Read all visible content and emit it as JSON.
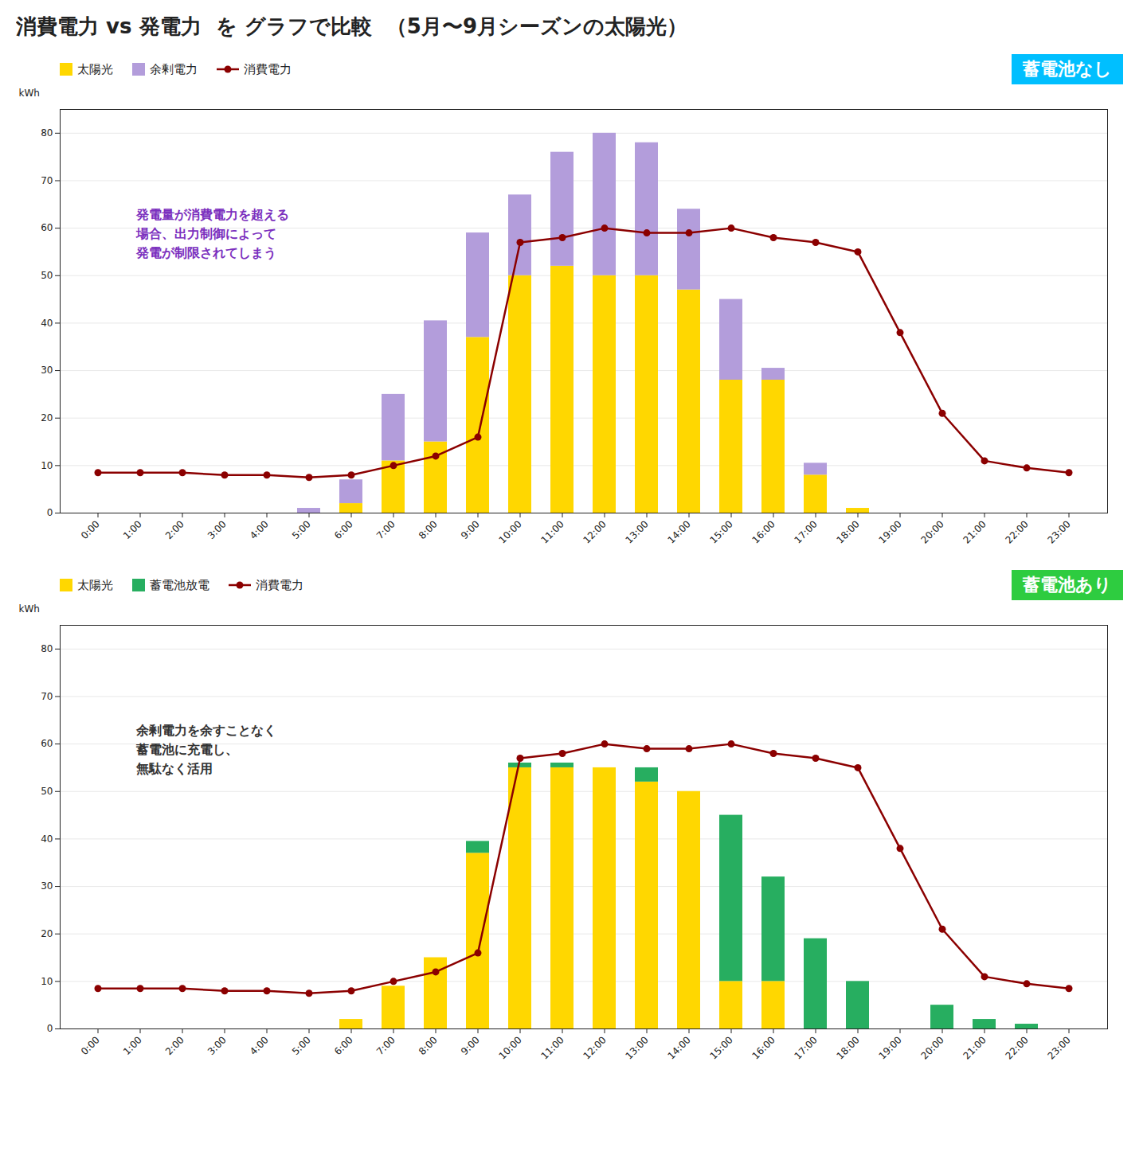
{
  "chart_data": [
    {
      "type": "bar",
      "title": "消費電力 vs 発電力  を グラフで比較  （5月〜9月シーズンの太陽光）",
      "stacked": true,
      "categories": [
        "0:00",
        "1:00",
        "2:00",
        "3:00",
        "4:00",
        "5:00",
        "6:00",
        "7:00",
        "8:00",
        "9:00",
        "10:00",
        "11:00",
        "12:00",
        "13:00",
        "14:00",
        "15:00",
        "16:00",
        "17:00",
        "18:00",
        "19:00",
        "20:00",
        "21:00",
        "22:00",
        "23:00"
      ],
      "series": [
        {
          "name": "太陽光",
          "type": "bar",
          "color": "#FFD700",
          "values": [
            0,
            0,
            0,
            0,
            0,
            0,
            2.0,
            11.0,
            15.0,
            37.0,
            50.0,
            52.0,
            50.0,
            50.0,
            47.0,
            28.0,
            28.0,
            8.0,
            1.0,
            0,
            0,
            0,
            0,
            0
          ]
        },
        {
          "name": "余剰電力",
          "type": "bar",
          "color": "#B39DDB",
          "values": [
            0,
            0,
            0,
            0,
            0,
            1.0,
            5.0,
            14.0,
            25.5,
            22.0,
            17.0,
            24.0,
            30.0,
            28.0,
            17.0,
            17.0,
            2.5,
            2.5,
            0,
            0,
            0,
            0,
            0,
            0
          ]
        },
        {
          "name": "消費電力",
          "type": "line",
          "color": "#8B0000",
          "marker": "circle",
          "values": [
            8.5,
            8.5,
            8.5,
            8.0,
            8.0,
            7.5,
            8.0,
            10.0,
            12.0,
            16.0,
            57.0,
            58.0,
            60.0,
            59.0,
            59.0,
            60.0,
            58.0,
            57.0,
            55.0,
            38.0,
            21.0,
            11.0,
            9.5,
            8.5
          ]
        }
      ],
      "ylabel": "kWh",
      "ylim": [
        0,
        85
      ],
      "yticks": [
        0,
        10,
        20,
        30,
        40,
        50,
        60,
        70,
        80
      ],
      "grid": true,
      "legend": "top-left",
      "annotations": [
        {
          "text": "蓄電池なし",
          "color": "#00BFFF"
        },
        {
          "text": "発電量が消費電力を超える\n場合、出力制御によって\n発電が制限されてしまう",
          "color": "#7B2FBE"
        }
      ]
    },
    {
      "type": "bar",
      "stacked": true,
      "categories": [
        "0:00",
        "1:00",
        "2:00",
        "3:00",
        "4:00",
        "5:00",
        "6:00",
        "7:00",
        "8:00",
        "9:00",
        "10:00",
        "11:00",
        "12:00",
        "13:00",
        "14:00",
        "15:00",
        "16:00",
        "17:00",
        "18:00",
        "19:00",
        "20:00",
        "21:00",
        "22:00",
        "23:00"
      ],
      "series": [
        {
          "name": "太陽光",
          "type": "bar",
          "color": "#FFD700",
          "values": [
            0,
            0,
            0,
            0,
            0,
            0,
            2.0,
            9.0,
            15.0,
            37.0,
            55.0,
            55.0,
            55.0,
            52.0,
            50.0,
            10.0,
            10.0,
            0,
            0,
            0,
            0,
            0,
            0,
            0
          ]
        },
        {
          "name": "蓄電池放電",
          "type": "bar",
          "color": "#27AE60",
          "values": [
            0,
            0,
            0,
            0,
            0,
            0,
            0,
            0,
            0,
            2.5,
            1.0,
            1.0,
            0,
            3.0,
            0,
            35.0,
            22.0,
            19.0,
            10.0,
            0,
            5.0,
            2.0,
            1.0,
            0
          ]
        },
        {
          "name": "消費電力",
          "type": "line",
          "color": "#8B0000",
          "marker": "circle",
          "values": [
            8.5,
            8.5,
            8.5,
            8.0,
            8.0,
            7.5,
            8.0,
            10.0,
            12.0,
            16.0,
            57.0,
            58.0,
            60.0,
            59.0,
            59.0,
            60.0,
            58.0,
            57.0,
            55.0,
            38.0,
            21.0,
            11.0,
            9.5,
            8.5
          ]
        }
      ],
      "ylabel": "kWh",
      "ylim": [
        0,
        85
      ],
      "yticks": [
        0,
        10,
        20,
        30,
        40,
        50,
        60,
        70,
        80
      ],
      "grid": true,
      "legend": "top-left",
      "annotations": [
        {
          "text": "蓄電池あり",
          "color": "#2ECC40"
        },
        {
          "text": "余剰電力を余すことなく\n蓄電池に充電し、\n無駄なく活用",
          "color": "#333333"
        }
      ]
    }
  ]
}
